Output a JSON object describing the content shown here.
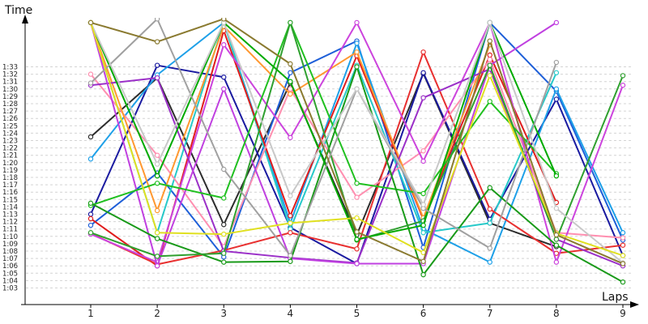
{
  "chart_data": {
    "type": "line",
    "title": "",
    "xlabel": "Laps",
    "ylabel": "Time",
    "x": [
      1,
      2,
      3,
      4,
      5,
      6,
      7,
      8,
      9
    ],
    "x_tick_labels": [
      "1",
      "2",
      "3",
      "4",
      "5",
      "6",
      "7",
      "8",
      "9"
    ],
    "y_tick_labels": [
      "1:03",
      "1:04",
      "1:05",
      "1:06",
      "1:07",
      "1:08",
      "1:09",
      "1:10",
      "1:11",
      "1:12",
      "1:13",
      "1:14",
      "1:15",
      "1:16",
      "1:17",
      "1:18",
      "1:19",
      "1:20",
      "1:21",
      "1:22",
      "1:23",
      "1:24",
      "1:25",
      "1:26",
      "1:27",
      "1:28",
      "1:29",
      "1:30",
      "1:31",
      "1:32",
      "1:33"
    ],
    "y_tick_values": [
      63,
      64,
      65,
      66,
      67,
      68,
      69,
      70,
      71,
      72,
      73,
      74,
      75,
      76,
      77,
      78,
      79,
      80,
      81,
      82,
      83,
      84,
      85,
      86,
      87,
      88,
      89,
      90,
      91,
      92,
      93
    ],
    "ylim": [
      62,
      96
    ],
    "xlim": [
      0.1,
      9.3
    ],
    "grid": "horizontal dashed",
    "legend": "none",
    "series": [
      {
        "color": "#2c2c2c",
        "values": [
          83.5,
          91.5,
          71.6,
          90.8,
          70.2,
          92.1,
          71.8,
          68.6,
          null
        ]
      },
      {
        "color": "#1a1aa0",
        "values": [
          73.0,
          93.2,
          91.6,
          71.2,
          66.3,
          92.2,
          72.3,
          88.6,
          67.4
        ]
      },
      {
        "color": "#1e5fd8",
        "values": [
          71.5,
          78.6,
          67.2,
          92.2,
          96.5,
          68.5,
          99.0,
          89.7,
          69.5
        ]
      },
      {
        "color": "#1ea0e8",
        "values": [
          80.5,
          91.9,
          99.0,
          71.8,
          96.2,
          71.0,
          66.5,
          90.0,
          70.5
        ]
      },
      {
        "color": "#27c9c9",
        "values": [
          99.0,
          70.5,
          99.0,
          71.0,
          93.2,
          70.5,
          71.8,
          92.2,
          null
        ]
      },
      {
        "color": "#e01c1c",
        "values": [
          72.4,
          66.0,
          97.9,
          72.8,
          94.5,
          72.3,
          94.6,
          74.6,
          null
        ]
      },
      {
        "color": "#e83030",
        "values": [
          70.4,
          66.2,
          68.1,
          70.5,
          68.3,
          95.0,
          73.7,
          67.7,
          68.8
        ]
      },
      {
        "color": "#ff8fb0",
        "values": [
          92.0,
          81.0,
          68.6,
          90.0,
          75.3,
          81.6,
          94.0,
          70.5,
          69.8
        ]
      },
      {
        "color": "#ff9830",
        "values": [
          99.0,
          73.5,
          98.5,
          89.3,
          95.0,
          72.5,
          96.0,
          null,
          null
        ]
      },
      {
        "color": "#cc44dd",
        "values": [
          70.3,
          66.5,
          96.0,
          83.4,
          99.0,
          80.2,
          99.0,
          66.5,
          90.5
        ]
      },
      {
        "color": "#9b30c8",
        "values": [
          90.5,
          91.5,
          68.0,
          67.1,
          66.4,
          88.8,
          92.7,
          69.6,
          66.0
        ]
      },
      {
        "color": "#c040e0",
        "values": [
          99.0,
          66.0,
          90.0,
          67.0,
          66.3,
          66.3,
          93.2,
          99.0,
          null
        ]
      },
      {
        "color": "#20c020",
        "values": [
          74.2,
          77.2,
          75.2,
          99.0,
          77.2,
          75.8,
          88.3,
          78.5,
          null
        ]
      },
      {
        "color": "#199a19",
        "values": [
          74.5,
          69.7,
          66.5,
          66.6,
          93.0,
          64.8,
          76.6,
          68.8,
          63.8
        ]
      },
      {
        "color": "#2fa02f",
        "values": [
          70.5,
          67.3,
          67.7,
          99.0,
          69.5,
          72.1,
          93.2,
          69.6,
          91.8
        ]
      },
      {
        "color": "#00aa00",
        "values": [
          99.0,
          78.2,
          99.0,
          91.0,
          69.6,
          71.5,
          99.0,
          78.2,
          null
        ]
      },
      {
        "color": "#a0a0a0",
        "values": [
          90.8,
          99.5,
          79.1,
          67.4,
          90.0,
          73.8,
          68.4,
          93.6,
          null
        ]
      },
      {
        "color": "#c8c8c8",
        "values": [
          99.0,
          79.8,
          99.0,
          75.5,
          90.0,
          74.3,
          99.0,
          73.8,
          66.4
        ]
      },
      {
        "color": "#e0e020",
        "values": [
          99.0,
          70.5,
          70.3,
          71.8,
          72.5,
          67.8,
          91.8,
          70.4,
          67.4
        ]
      },
      {
        "color": "#8a7a30",
        "values": [
          99.0,
          96.4,
          99.5,
          93.4,
          70.6,
          66.6,
          96.5,
          70.2,
          66.3
        ]
      }
    ]
  }
}
